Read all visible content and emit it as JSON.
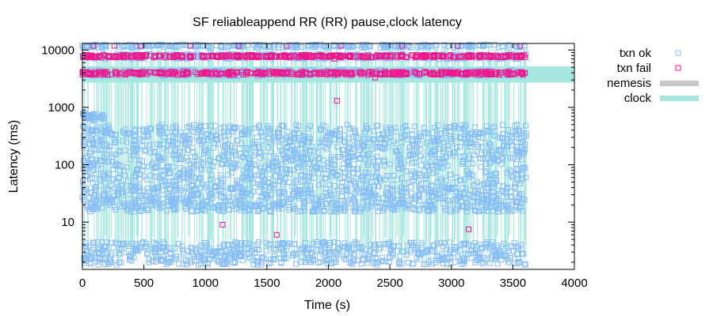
{
  "chart_data": {
    "type": "scatter",
    "title": "SF reliableappend RR (RR) pause,clock latency",
    "xlabel": "Time (s)",
    "ylabel": "Latency (ms)",
    "xlim": [
      0,
      4000
    ],
    "ylim": [
      1.5,
      13000
    ],
    "yscale": "log",
    "x_ticks": [
      0,
      500,
      1000,
      1500,
      2000,
      2500,
      3000,
      3500,
      4000
    ],
    "y_ticks": [
      10,
      100,
      1000,
      10000
    ],
    "x_tick_labels": [
      "0",
      "500",
      "1000",
      "1500",
      "2000",
      "2500",
      "3000",
      "3500",
      "4000"
    ],
    "y_tick_labels": [
      "10",
      "100",
      "1000",
      "10000"
    ],
    "legend_position": "right",
    "series": [
      {
        "name": "txn ok",
        "marker": "square",
        "color": "#87bdf5",
        "clusters": [
          {
            "y_range": [
              1.8,
              4.5
            ],
            "x_range": [
              0,
              3610
            ]
          },
          {
            "y_range": [
              15,
              40
            ],
            "x_range": [
              0,
              3610
            ]
          },
          {
            "y_range": [
              40,
              500
            ],
            "x_range": [
              0,
              3610
            ]
          },
          {
            "y_range": [
              600,
              800
            ],
            "x_range": [
              0,
              180
            ]
          },
          {
            "y_range": [
              3500,
              4500
            ],
            "x_range": [
              0,
              3610
            ]
          },
          {
            "y_range": [
              7000,
              8500
            ],
            "x_range": [
              0,
              3610
            ]
          },
          {
            "y_range": [
              11000,
              12500
            ],
            "x_range": [
              0,
              3610
            ]
          }
        ]
      },
      {
        "name": "txn fail",
        "marker": "square",
        "color": "#f0168c",
        "points": [
          [
            1140,
            9
          ],
          [
            1580,
            6
          ],
          [
            2070,
            1300
          ],
          [
            2380,
            3300
          ],
          [
            3140,
            7.5
          ],
          [
            2050,
            7000
          ],
          [
            90,
            11800
          ],
          [
            260,
            11800
          ],
          [
            470,
            11800
          ],
          [
            880,
            11800
          ],
          [
            1270,
            11800
          ],
          [
            1660,
            11800
          ],
          [
            2100,
            11800
          ],
          [
            2600,
            11800
          ],
          [
            3050,
            11800
          ],
          [
            3560,
            11800
          ]
        ],
        "bands": [
          {
            "y_range": [
              7400,
              8200
            ],
            "x_range": [
              0,
              3610
            ]
          },
          {
            "y_range": [
              3700,
              4200
            ],
            "x_range": [
              0,
              3610
            ]
          }
        ]
      },
      {
        "name": "nemesis",
        "type": "band",
        "color": "#c8c8c8",
        "intervals": []
      },
      {
        "name": "clock",
        "type": "band",
        "color": "#a6e8e0",
        "y_band": [
          2700,
          5200
        ],
        "x_range": [
          0,
          4000
        ]
      }
    ]
  }
}
